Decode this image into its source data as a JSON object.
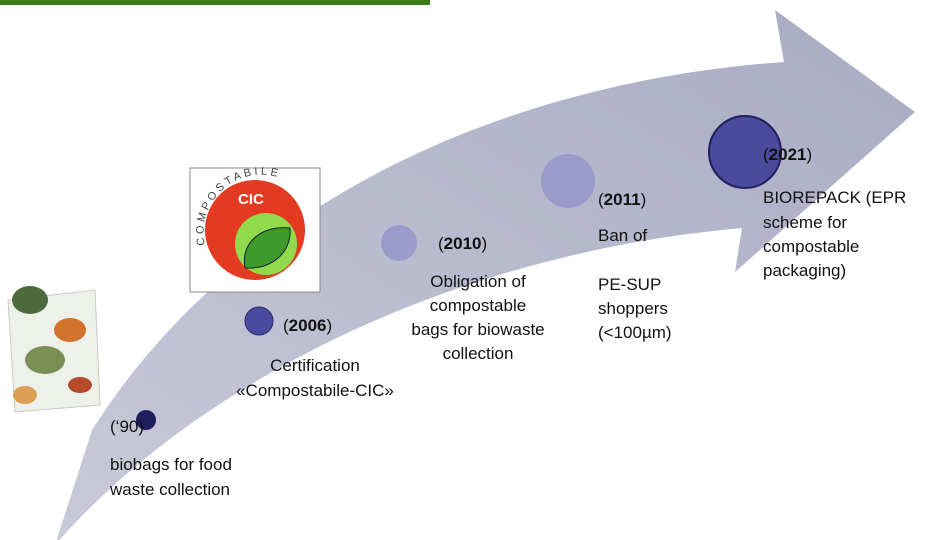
{
  "logo": {
    "arc_text": "COMPOSTABILE",
    "center": "CIC"
  },
  "milestones": [
    {
      "open": "(",
      "year": "‘90",
      "close": ")",
      "lines": [
        "biobags for food",
        "waste collection"
      ]
    },
    {
      "open": "(",
      "year": "2006",
      "close": ")",
      "lines": [
        "Certification",
        "«Compostabile-CIC»"
      ]
    },
    {
      "open": "(",
      "year": "2010",
      "close": ")",
      "lines": [
        "Obligation of",
        "compostable",
        "bags for biowaste",
        "collection"
      ]
    },
    {
      "open": "(",
      "year": "2011",
      "close": ")",
      "lines": [
        "Ban of",
        "PE-SUP",
        "shoppers",
        "(<100µm)"
      ]
    },
    {
      "open": "(",
      "year": "2021",
      "close": ")",
      "lines": [
        "BIOREPACK (EPR",
        "scheme for",
        "compostable",
        "packaging)"
      ]
    }
  ]
}
